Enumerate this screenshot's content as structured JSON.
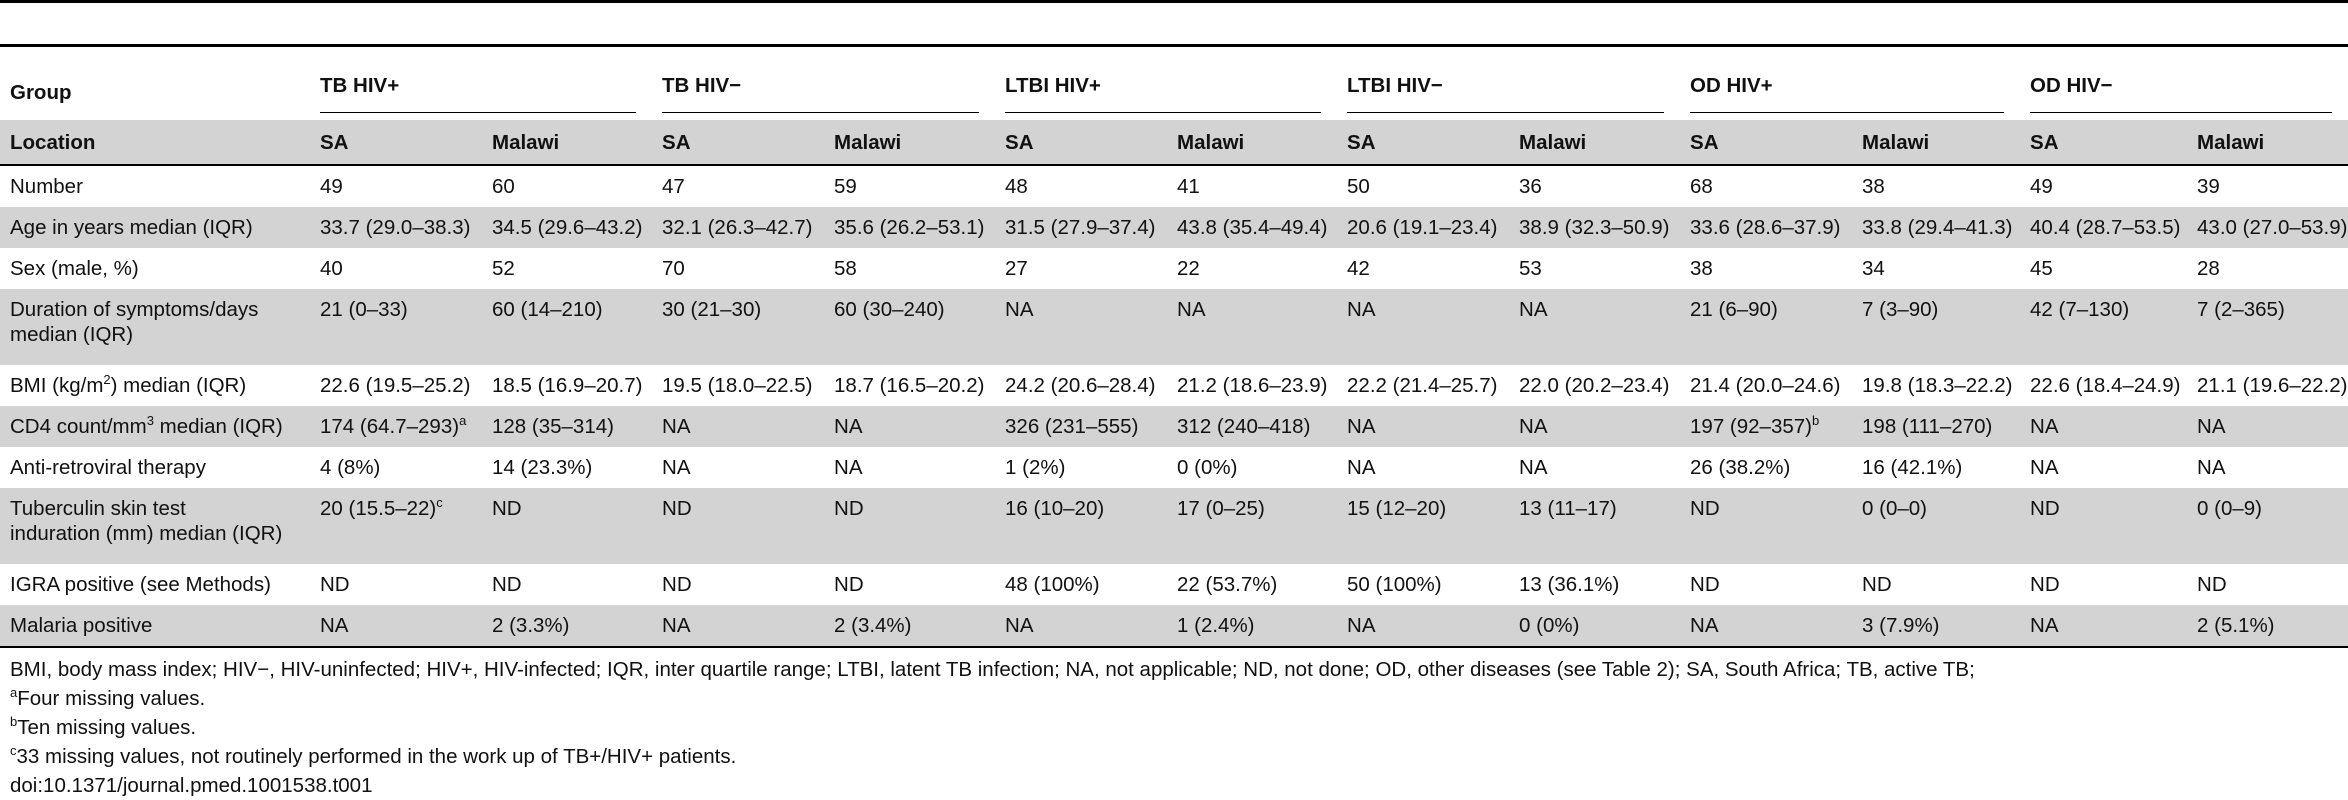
{
  "header": {
    "group_label": "Group",
    "location_label": "Location",
    "groups": [
      "TB HIV+",
      "TB HIV−",
      "LTBI HIV+",
      "LTBI HIV−",
      "OD HIV+",
      "OD HIV−"
    ],
    "locations": [
      "SA",
      "Malawi",
      "SA",
      "Malawi",
      "SA",
      "Malawi",
      "SA",
      "Malawi",
      "SA",
      "Malawi",
      "SA",
      "Malawi"
    ]
  },
  "rows": [
    {
      "label": "Number",
      "cells": [
        "49",
        "60",
        "47",
        "59",
        "48",
        "41",
        "50",
        "36",
        "68",
        "38",
        "49",
        "39"
      ]
    },
    {
      "label": "Age in years median (IQR)",
      "cells": [
        "33.7 (29.0–38.3)",
        "34.5 (29.6–43.2)",
        "32.1 (26.3–42.7)",
        "35.6 (26.2–53.1)",
        "31.5 (27.9–37.4)",
        "43.8 (35.4–49.4)",
        "20.6 (19.1–23.4)",
        "38.9 (32.3–50.9)",
        "33.6 (28.6–37.9)",
        "33.8 (29.4–41.3)",
        "40.4 (28.7–53.5)",
        "43.0 (27.0–53.9)"
      ]
    },
    {
      "label": "Sex (male, %)",
      "cells": [
        "40",
        "52",
        "70",
        "58",
        "27",
        "22",
        "42",
        "53",
        "38",
        "34",
        "45",
        "28"
      ]
    },
    {
      "label_line1": "Duration of symptoms/days",
      "label_line2": "median (IQR)",
      "cells": [
        "21 (0–33)",
        "60 (14–210)",
        "30 (21–30)",
        "60 (30–240)",
        "NA",
        "NA",
        "NA",
        "NA",
        "21 (6–90)",
        "7 (3–90)",
        "42 (7–130)",
        "7 (2–365)"
      ]
    },
    {
      "label_pre": "BMI (kg/m",
      "label_sup": "2",
      "label_post": ") median (IQR)",
      "cells": [
        "22.6 (19.5–25.2)",
        "18.5 (16.9–20.7)",
        "19.5 (18.0–22.5)",
        "18.7 (16.5–20.2)",
        "24.2 (20.6–28.4)",
        "21.2 (18.6–23.9)",
        "22.2 (21.4–25.7)",
        "22.0 (20.2–23.4)",
        "21.4 (20.0–24.6)",
        "19.8 (18.3–22.2)",
        "22.6 (18.4–24.9)",
        "21.1 (19.6–22.2)"
      ]
    },
    {
      "label_pre": "CD4 count/mm",
      "label_sup": "3",
      "label_post": " median (IQR)",
      "cells": [
        "174 (64.7–293)",
        "128 (35–314)",
        "NA",
        "NA",
        "326 (231–555)",
        "312 (240–418)",
        "NA",
        "NA",
        "197 (92–357)",
        "198 (111–270)",
        "NA",
        "NA"
      ],
      "sups": {
        "0": "a",
        "8": "b"
      }
    },
    {
      "label": "Anti-retroviral therapy",
      "cells": [
        "4 (8%)",
        "14 (23.3%)",
        "NA",
        "NA",
        "1 (2%)",
        "0 (0%)",
        "NA",
        "NA",
        "26 (38.2%)",
        "16 (42.1%)",
        "NA",
        "NA"
      ]
    },
    {
      "label_line1": "Tuberculin skin test",
      "label_line2": "induration (mm) median (IQR)",
      "cells": [
        "20 (15.5–22)",
        "ND",
        "ND",
        "ND",
        "16 (10–20)",
        "17 (0–25)",
        "15 (12–20)",
        "13 (11–17)",
        "ND",
        "0 (0–0)",
        "ND",
        "0 (0–9)"
      ],
      "sups": {
        "0": "c"
      }
    },
    {
      "label": "IGRA positive (see Methods)",
      "cells": [
        "ND",
        "ND",
        "ND",
        "ND",
        "48 (100%)",
        "22 (53.7%)",
        "50 (100%)",
        "13 (36.1%)",
        "ND",
        "ND",
        "ND",
        "ND"
      ]
    },
    {
      "label": "Malaria positive",
      "cells": [
        "NA",
        "2 (3.3%)",
        "NA",
        "2 (3.4%)",
        "NA",
        "1 (2.4%)",
        "NA",
        "0 (0%)",
        "NA",
        "3 (7.9%)",
        "NA",
        "2 (5.1%)"
      ]
    }
  ],
  "footnotes": {
    "abbrev": "BMI, body mass index; HIV−, HIV-uninfected; HIV+, HIV-infected; IQR, inter quartile range; LTBI, latent TB infection; NA, not applicable; ND, not done; OD, other diseases (see Table 2); SA, South Africa; TB, active TB;",
    "a_mark": "a",
    "a_text": "Four missing values.",
    "b_mark": "b",
    "b_text": "Ten missing values.",
    "c_mark": "c",
    "c_text": "33 missing values, not routinely performed in the work up of TB+/HIV+ patients.",
    "doi": "doi:10.1371/journal.pmed.1001538.t001"
  }
}
